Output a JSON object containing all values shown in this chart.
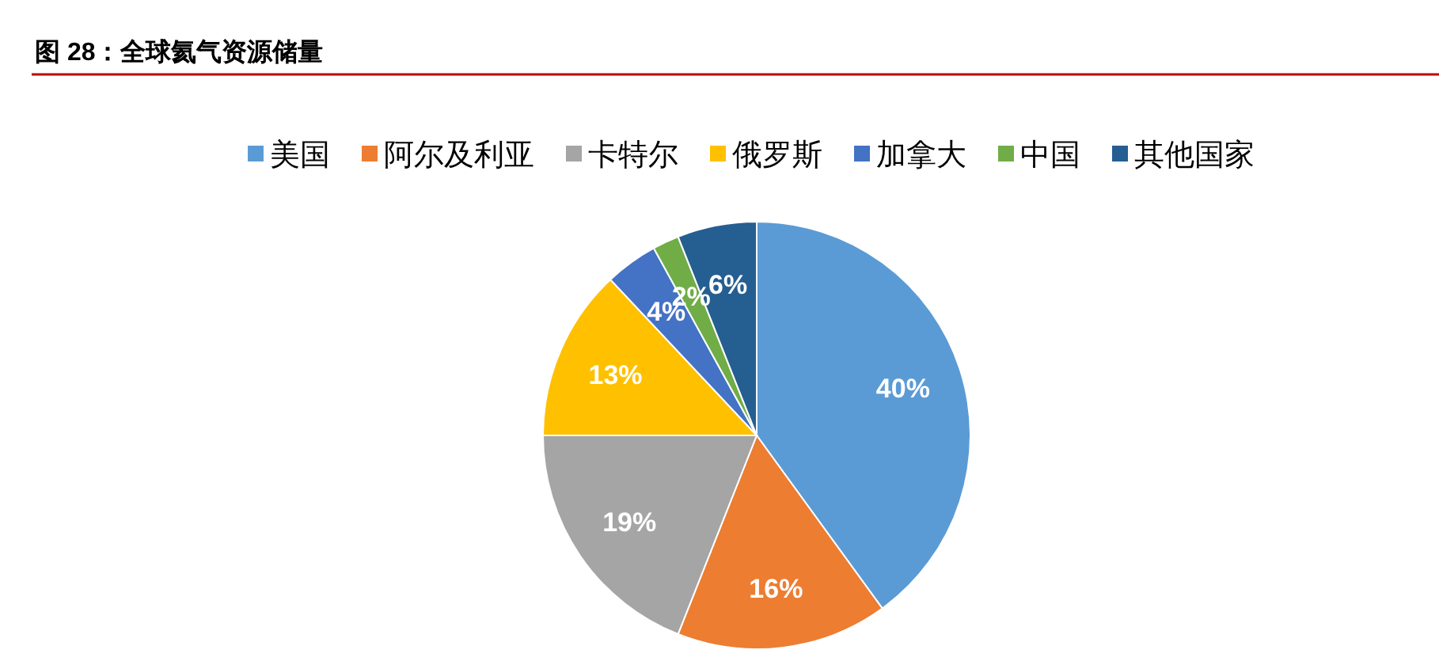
{
  "chart_data": {
    "type": "pie",
    "title": "图 28：全球氦气资源储量",
    "categories": [
      "美国",
      "阿尔及利亚",
      "卡特尔",
      "俄罗斯",
      "加拿大",
      "中国",
      "其他国家"
    ],
    "values": [
      40,
      16,
      19,
      13,
      4,
      2,
      6
    ],
    "colors": [
      "#5b9bd5",
      "#ed7d31",
      "#a5a5a5",
      "#ffc000",
      "#4472c4",
      "#70ad47",
      "#255e91"
    ],
    "value_labels": [
      "40%",
      "16%",
      "19%",
      "13%",
      "4%",
      "2%",
      "6%"
    ],
    "legend": "top"
  }
}
